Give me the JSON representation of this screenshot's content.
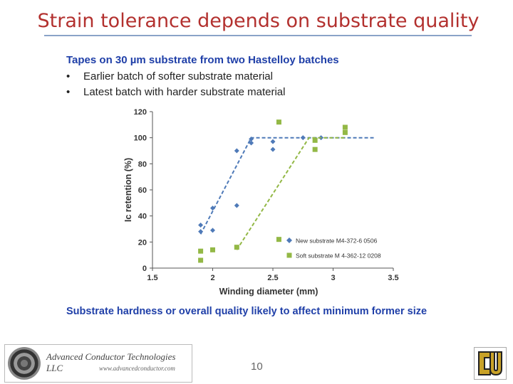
{
  "slide": {
    "title": "Strain tolerance depends on substrate quality",
    "intro": "Tapes on 30 µm substrate from two Hastelloy batches",
    "bullets": [
      "Earlier batch of softer substrate material",
      "Latest batch with harder substrate material"
    ],
    "conclusion": "Substrate hardness or overall quality likely to affect minimum former size",
    "page_number": "10",
    "logo_text": "Advanced Conductor Technologies LLC",
    "logo_url": "www.advancedconductor.com"
  },
  "colors": {
    "title": "#b3312f",
    "blue_text": "#1f3fa8",
    "series_blue": "#4f7ab8",
    "series_green": "#93b846"
  },
  "chart_data": {
    "type": "scatter",
    "xlabel": "Winding diameter (mm)",
    "ylabel": "Ic retention (%)",
    "xlim": [
      1.5,
      3.5
    ],
    "ylim": [
      0,
      120
    ],
    "xticks": [
      "1.5",
      "2",
      "2.5",
      "3",
      "3.5"
    ],
    "yticks": [
      "0",
      "20",
      "40",
      "60",
      "80",
      "100",
      "120"
    ],
    "grid": false,
    "legend_position": "bottom-right",
    "series": [
      {
        "name": "New substrate M4-372-6 0506",
        "marker": "diamond",
        "color": "#4f7ab8",
        "points": [
          [
            1.9,
            33
          ],
          [
            1.9,
            28
          ],
          [
            2.0,
            46
          ],
          [
            2.0,
            29
          ],
          [
            2.2,
            90
          ],
          [
            2.2,
            48
          ],
          [
            2.32,
            99
          ],
          [
            2.32,
            96
          ],
          [
            2.5,
            97
          ],
          [
            2.5,
            91
          ],
          [
            2.75,
            100
          ],
          [
            2.9,
            100
          ]
        ],
        "trend": [
          [
            1.9,
            26
          ],
          [
            2.32,
            100
          ],
          [
            3.35,
            100
          ]
        ]
      },
      {
        "name": "Soft substrate M 4-362-12 0208",
        "marker": "square",
        "color": "#93b846",
        "points": [
          [
            1.9,
            13
          ],
          [
            1.9,
            6
          ],
          [
            2.0,
            14
          ],
          [
            2.2,
            16
          ],
          [
            2.55,
            112
          ],
          [
            2.55,
            22
          ],
          [
            2.85,
            98
          ],
          [
            2.85,
            91
          ],
          [
            3.1,
            108
          ],
          [
            3.1,
            104
          ]
        ],
        "trend": [
          [
            2.2,
            14
          ],
          [
            2.8,
            100
          ],
          [
            3.1,
            100
          ]
        ]
      }
    ]
  }
}
